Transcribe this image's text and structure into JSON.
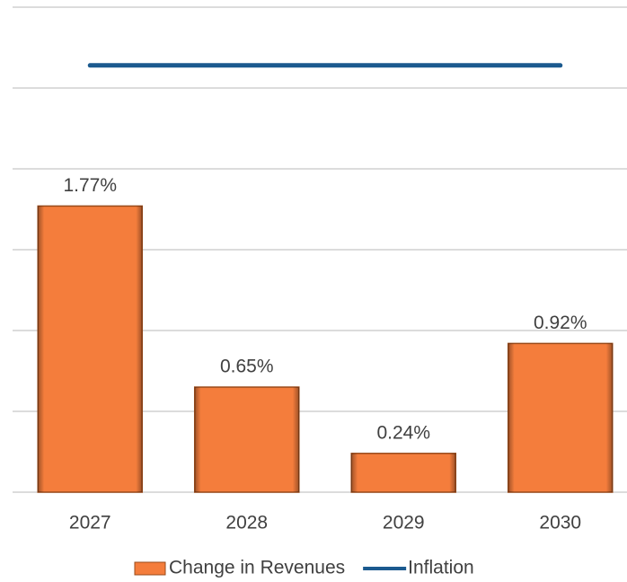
{
  "chart_data": {
    "type": "bar",
    "categories": [
      "2027",
      "2028",
      "2029",
      "2030"
    ],
    "series": [
      {
        "name": "Change in Revenues",
        "type": "bar",
        "color": "#f47d3c",
        "values": [
          1.77,
          0.65,
          0.24,
          0.92
        ],
        "value_labels": [
          "1.77%",
          "0.65%",
          "0.24%",
          "0.92%"
        ]
      },
      {
        "name": "Inflation",
        "type": "line",
        "color": "#1b5a8f",
        "values": [
          2.64,
          2.64,
          2.64,
          2.64
        ]
      }
    ],
    "ylim": [
      0,
      3
    ],
    "yticks": [
      0,
      0.5,
      1,
      1.5,
      2,
      2.5,
      3
    ],
    "grid": true,
    "legend": "bottom"
  }
}
